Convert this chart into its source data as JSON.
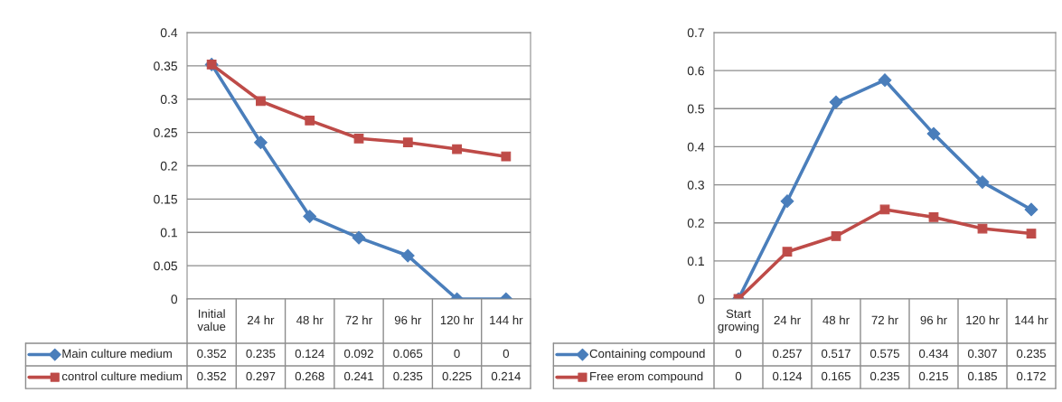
{
  "chart_data": [
    {
      "type": "line",
      "categories": [
        "Initial value",
        "24 hr",
        "48 hr",
        "72 hr",
        "96 hr",
        "120 hr",
        "144 hr"
      ],
      "series": [
        {
          "name": "Main culture medium",
          "color": "#4a7ebb",
          "marker": "diamond",
          "values": [
            0.352,
            0.235,
            0.124,
            0.092,
            0.065,
            0,
            0
          ]
        },
        {
          "name": "control culture medium",
          "color": "#be4b48",
          "marker": "square",
          "values": [
            0.352,
            0.297,
            0.268,
            0.241,
            0.235,
            0.225,
            0.214
          ]
        }
      ],
      "ylim": [
        0,
        0.4
      ],
      "yticks": [
        0,
        0.05,
        0.1,
        0.15,
        0.2,
        0.25,
        0.3,
        0.35,
        0.4
      ],
      "grid": "y",
      "legend": "bottom",
      "data_labels": true
    },
    {
      "type": "line",
      "categories": [
        "Start growing",
        "24 hr",
        "48 hr",
        "72 hr",
        "96 hr",
        "120 hr",
        "144 hr"
      ],
      "series": [
        {
          "name": "Containing compound",
          "color": "#4a7ebb",
          "marker": "diamond",
          "values": [
            0,
            0.257,
            0.517,
            0.575,
            0.434,
            0.307,
            0.235
          ]
        },
        {
          "name": "Free erom compound",
          "color": "#be4b48",
          "marker": "square",
          "values": [
            0,
            0.124,
            0.165,
            0.235,
            0.215,
            0.185,
            0.172
          ]
        }
      ],
      "ylim": [
        0,
        0.7
      ],
      "yticks": [
        0,
        0.1,
        0.2,
        0.3,
        0.4,
        0.5,
        0.6,
        0.7
      ],
      "grid": "y",
      "legend": "bottom",
      "data_labels": true
    }
  ]
}
